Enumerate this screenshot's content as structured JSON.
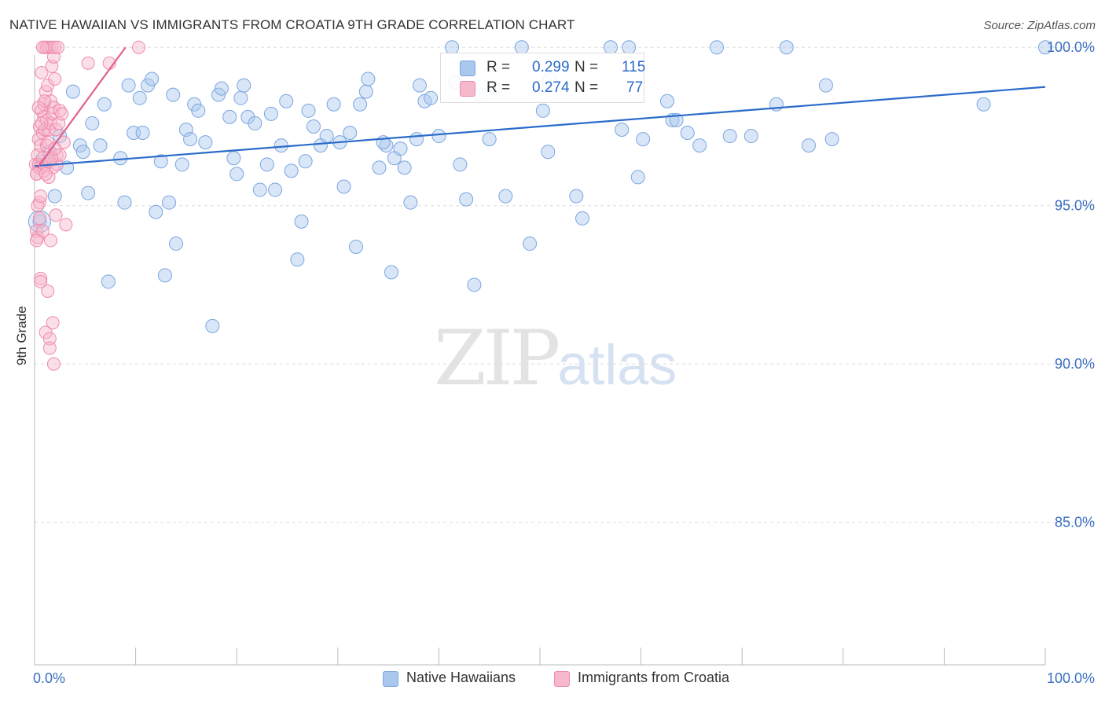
{
  "header": {
    "title": "NATIVE HAWAIIAN VS IMMIGRANTS FROM CROATIA 9TH GRADE CORRELATION CHART",
    "source": "Source: ZipAtlas.com"
  },
  "watermark": {
    "zip": "ZIP",
    "atlas": "atlas"
  },
  "legend_top": [
    {
      "r_label": "R = ",
      "r_value": "0.299",
      "n_label": "N = ",
      "n_value": "115"
    },
    {
      "r_label": "R = ",
      "r_value": "0.274",
      "n_label": "N = ",
      "n_value": "77"
    }
  ],
  "legend_bottom": [
    {
      "label": "Native Hawaiians"
    },
    {
      "label": "Immigrants from Croatia"
    }
  ],
  "colors": {
    "blue_fill": "#aac8ee",
    "blue_stroke": "#7aa6e0",
    "blue_line": "#2a6bc9",
    "pink_fill": "#f6b9cc",
    "pink_stroke": "#ee8aab",
    "pink_line": "#e0608e",
    "tick_text": "#3b6fc0",
    "grid": "#dddddd"
  },
  "chart_data": {
    "type": "scatter",
    "title": "NATIVE HAWAIIAN VS IMMIGRANTS FROM CROATIA 9TH GRADE CORRELATION CHART",
    "ylabel": "9th Grade",
    "xlabel": "",
    "xlim": [
      0,
      100
    ],
    "ylim": [
      80.5,
      100.75
    ],
    "x_tick_labels": [
      "0.0%",
      "100.0%"
    ],
    "y_ticks": [
      85,
      90,
      95,
      100
    ],
    "y_tick_labels": [
      "85.0%",
      "90.0%",
      "95.0%",
      "100.0%"
    ],
    "grid": true,
    "legend_placement": "top-center",
    "series": [
      {
        "name": "Native Hawaiians",
        "r": 0.299,
        "n": 115,
        "trend": {
          "x": [
            0,
            100
          ],
          "y": [
            96.25,
            98.75
          ]
        },
        "points": [
          [
            0.5,
            94.5
          ],
          [
            0.8,
            96.4
          ],
          [
            1.5,
            96.7
          ],
          [
            2.0,
            95.3
          ],
          [
            2.5,
            97.2
          ],
          [
            3.2,
            96.2
          ],
          [
            3.8,
            98.6
          ],
          [
            4.5,
            96.9
          ],
          [
            4.8,
            96.7
          ],
          [
            5.3,
            95.4
          ],
          [
            5.7,
            97.6
          ],
          [
            6.5,
            96.9
          ],
          [
            6.9,
            98.2
          ],
          [
            7.3,
            92.6
          ],
          [
            8.5,
            96.5
          ],
          [
            8.9,
            95.1
          ],
          [
            9.3,
            98.8
          ],
          [
            9.8,
            97.3
          ],
          [
            10.4,
            98.4
          ],
          [
            10.7,
            97.3
          ],
          [
            11.2,
            98.8
          ],
          [
            11.6,
            99.0
          ],
          [
            12.0,
            94.8
          ],
          [
            12.5,
            96.4
          ],
          [
            12.9,
            92.8
          ],
          [
            13.3,
            95.1
          ],
          [
            13.7,
            98.5
          ],
          [
            14.0,
            93.8
          ],
          [
            14.6,
            96.3
          ],
          [
            15.0,
            97.4
          ],
          [
            15.4,
            97.1
          ],
          [
            15.8,
            98.2
          ],
          [
            16.2,
            98.0
          ],
          [
            16.9,
            97.0
          ],
          [
            17.6,
            91.2
          ],
          [
            18.2,
            98.5
          ],
          [
            18.5,
            98.7
          ],
          [
            19.3,
            97.8
          ],
          [
            19.7,
            96.5
          ],
          [
            20.4,
            98.4
          ],
          [
            20.7,
            98.8
          ],
          [
            21.1,
            97.8
          ],
          [
            21.8,
            97.6
          ],
          [
            22.3,
            95.5
          ],
          [
            23.0,
            96.3
          ],
          [
            23.4,
            97.9
          ],
          [
            23.8,
            95.5
          ],
          [
            24.4,
            96.9
          ],
          [
            24.9,
            98.3
          ],
          [
            25.4,
            96.1
          ],
          [
            26.0,
            93.3
          ],
          [
            26.4,
            94.5
          ],
          [
            27.1,
            98.0
          ],
          [
            27.6,
            97.5
          ],
          [
            28.3,
            96.9
          ],
          [
            28.9,
            97.2
          ],
          [
            29.6,
            98.2
          ],
          [
            30.2,
            97.0
          ],
          [
            30.6,
            95.6
          ],
          [
            31.2,
            97.3
          ],
          [
            31.8,
            93.7
          ],
          [
            32.2,
            98.2
          ],
          [
            32.8,
            98.6
          ],
          [
            33.0,
            99.0
          ],
          [
            34.1,
            96.2
          ],
          [
            34.8,
            96.9
          ],
          [
            35.3,
            92.9
          ],
          [
            35.6,
            96.5
          ],
          [
            36.2,
            96.8
          ],
          [
            36.6,
            96.2
          ],
          [
            37.2,
            95.1
          ],
          [
            37.8,
            97.1
          ],
          [
            38.1,
            98.8
          ],
          [
            38.6,
            98.3
          ],
          [
            39.2,
            98.4
          ],
          [
            40.0,
            97.2
          ],
          [
            41.3,
            100.0
          ],
          [
            41.6,
            98.9
          ],
          [
            42.1,
            96.3
          ],
          [
            42.7,
            95.2
          ],
          [
            43.5,
            92.5
          ],
          [
            44.1,
            98.5
          ],
          [
            45.0,
            97.1
          ],
          [
            45.5,
            98.7
          ],
          [
            46.6,
            95.3
          ],
          [
            48.2,
            100.0
          ],
          [
            49.0,
            93.8
          ],
          [
            50.3,
            98.0
          ],
          [
            51.0,
            99.0
          ],
          [
            53.6,
            95.3
          ],
          [
            54.2,
            94.6
          ],
          [
            57.0,
            100.0
          ],
          [
            58.8,
            100.0
          ],
          [
            59.7,
            95.9
          ],
          [
            60.2,
            97.1
          ],
          [
            62.6,
            98.3
          ],
          [
            63.1,
            97.7
          ],
          [
            63.5,
            97.7
          ],
          [
            64.6,
            97.3
          ],
          [
            65.8,
            96.9
          ],
          [
            67.5,
            100.0
          ],
          [
            68.8,
            97.2
          ],
          [
            70.9,
            97.2
          ],
          [
            73.4,
            98.2
          ],
          [
            74.4,
            100.0
          ],
          [
            76.6,
            96.9
          ],
          [
            78.3,
            98.8
          ],
          [
            78.9,
            97.1
          ],
          [
            93.9,
            98.2
          ],
          [
            100.0,
            100.0
          ],
          [
            20.0,
            96.0
          ],
          [
            34.5,
            97.0
          ],
          [
            26.8,
            96.4
          ],
          [
            50.8,
            96.7
          ],
          [
            58.1,
            97.4
          ]
        ]
      },
      {
        "name": "Immigrants from Croatia",
        "r": 0.274,
        "n": 77,
        "trend": {
          "x": [
            0.3,
            9.0
          ],
          "y": [
            96.2,
            100.0
          ]
        },
        "points": [
          [
            0.1,
            96.3
          ],
          [
            0.2,
            96.0
          ],
          [
            0.2,
            94.2
          ],
          [
            0.3,
            94.0
          ],
          [
            0.3,
            96.6
          ],
          [
            0.4,
            96.3
          ],
          [
            0.4,
            97.1
          ],
          [
            0.5,
            95.1
          ],
          [
            0.5,
            96.2
          ],
          [
            0.5,
            97.5
          ],
          [
            0.6,
            92.7
          ],
          [
            0.6,
            92.6
          ],
          [
            0.6,
            96.9
          ],
          [
            0.7,
            98.0
          ],
          [
            0.7,
            99.2
          ],
          [
            0.8,
            97.3
          ],
          [
            0.8,
            96.5
          ],
          [
            0.8,
            94.2
          ],
          [
            0.9,
            98.2
          ],
          [
            0.9,
            97.8
          ],
          [
            1.0,
            100.0
          ],
          [
            1.0,
            97.4
          ],
          [
            1.1,
            98.6
          ],
          [
            1.1,
            96.3
          ],
          [
            1.1,
            91.0
          ],
          [
            1.2,
            100.0
          ],
          [
            1.2,
            97.7
          ],
          [
            1.2,
            96.9
          ],
          [
            1.3,
            98.8
          ],
          [
            1.3,
            92.3
          ],
          [
            1.4,
            100.0
          ],
          [
            1.4,
            97.4
          ],
          [
            1.5,
            96.4
          ],
          [
            1.5,
            90.8
          ],
          [
            1.5,
            90.5
          ],
          [
            1.6,
            98.3
          ],
          [
            1.6,
            97.6
          ],
          [
            1.6,
            93.9
          ],
          [
            1.7,
            100.0
          ],
          [
            1.7,
            99.4
          ],
          [
            1.8,
            97.9
          ],
          [
            1.8,
            96.2
          ],
          [
            1.8,
            91.3
          ],
          [
            1.9,
            99.7
          ],
          [
            1.9,
            98.1
          ],
          [
            1.9,
            90.0
          ],
          [
            2.0,
            100.0
          ],
          [
            2.0,
            99.0
          ],
          [
            2.1,
            97.4
          ],
          [
            2.1,
            94.7
          ],
          [
            2.2,
            96.6
          ],
          [
            2.2,
            96.3
          ],
          [
            2.3,
            100.0
          ],
          [
            2.4,
            97.6
          ],
          [
            2.5,
            98.0
          ],
          [
            2.5,
            96.6
          ],
          [
            2.7,
            97.9
          ],
          [
            2.9,
            97.0
          ],
          [
            3.1,
            94.4
          ],
          [
            0.2,
            93.9
          ],
          [
            0.3,
            95.0
          ],
          [
            0.6,
            95.3
          ],
          [
            0.9,
            96.1
          ],
          [
            1.0,
            98.3
          ],
          [
            1.3,
            97.0
          ],
          [
            1.7,
            96.5
          ],
          [
            2.0,
            96.8
          ],
          [
            0.4,
            98.1
          ],
          [
            0.7,
            97.6
          ],
          [
            1.4,
            95.9
          ],
          [
            0.2,
            96.0
          ],
          [
            5.3,
            99.5
          ],
          [
            7.4,
            99.5
          ],
          [
            10.3,
            100.0
          ],
          [
            0.5,
            94.6
          ],
          [
            0.8,
            100.0
          ],
          [
            1.1,
            96.0
          ]
        ]
      }
    ]
  }
}
